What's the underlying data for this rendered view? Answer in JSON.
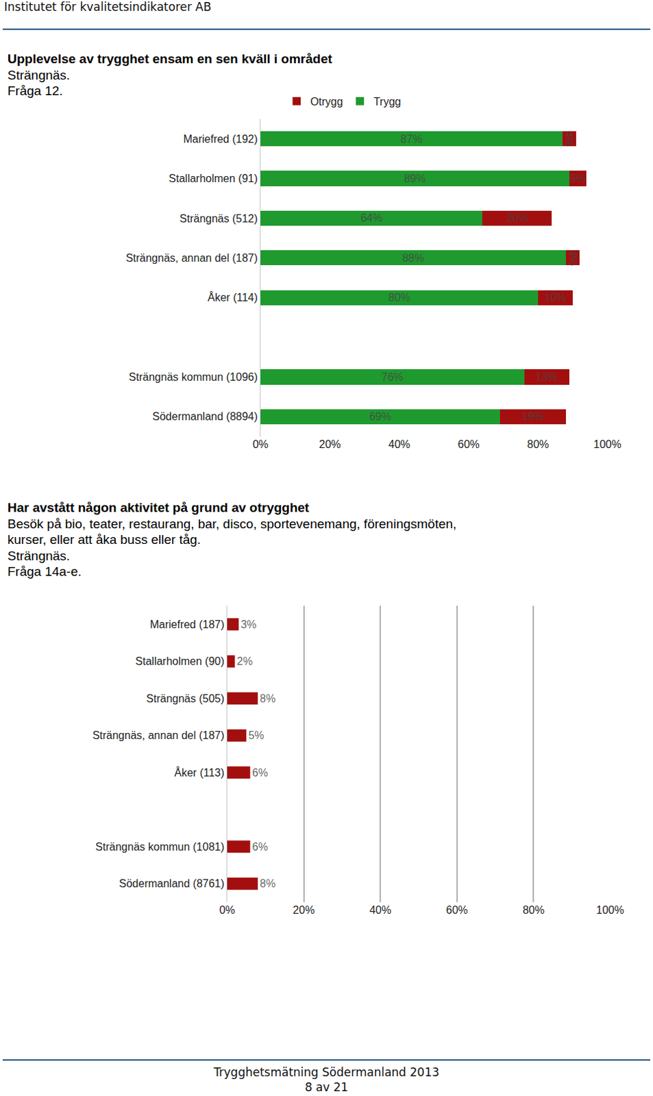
{
  "page": {
    "header": "Institutet för kvalitetsindikatorer AB",
    "footer": "Trygghetsmätning Södermanland 2013",
    "page_number": "8 av 21"
  },
  "chart_data": [
    {
      "type": "bar",
      "orientation": "horizontal",
      "stacked": true,
      "title": "Upplevelse av trygghet ensam en sen kväll i området",
      "subtitle": "Strängnäs.\nFråga 12.",
      "categories": [
        "Mariefred (192)",
        "Stallarholmen (91)",
        "Strängnäs (512)",
        "Strängnäs, annan del (187)",
        "Åker (114)",
        null,
        "Strängnäs kommun (1096)",
        "Södermanland (8894)"
      ],
      "series": [
        {
          "name": "Trygg",
          "color": "#1f9a2f",
          "values": [
            87,
            89,
            64,
            88,
            80,
            null,
            76,
            69
          ],
          "value_labels": [
            "87%",
            "89%",
            "64%",
            "88%",
            "80%",
            null,
            "76%",
            "69%"
          ]
        },
        {
          "name": "Otrygg",
          "color": "#a30f0f",
          "values": [
            4,
            5,
            20,
            4,
            10,
            null,
            13,
            19
          ],
          "value_labels": [
            "4%",
            "5%",
            "20%",
            "4%",
            "10%",
            null,
            "13%",
            "19%"
          ]
        }
      ],
      "data_labels": true,
      "legend": "top",
      "grid": false,
      "xlim": [
        0,
        100
      ],
      "xticks": [
        {
          "value": 0,
          "label": "0%"
        },
        {
          "value": 20,
          "label": "20%"
        },
        {
          "value": 40,
          "label": "40%"
        },
        {
          "value": 60,
          "label": "60%"
        },
        {
          "value": 80,
          "label": "80%"
        },
        {
          "value": 100,
          "label": "100%"
        }
      ]
    },
    {
      "type": "bar",
      "orientation": "horizontal",
      "title": "Har avstått någon aktivitet på grund av otrygghet",
      "subtitle": "Besök på bio, teater, restaurang, bar, disco, sportevenemang, föreningsmöten,\nkurser, eller att åka buss eller tåg.\nSträngnäs.\nFråga 14a-e.",
      "categories": [
        "Mariefred (187)",
        "Stallarholmen (90)",
        "Strängnäs (505)",
        "Strängnäs, annan del (187)",
        "Åker (113)",
        null,
        "Strängnäs kommun (1081)",
        "Södermanland (8761)"
      ],
      "values": [
        3,
        2,
        8,
        5,
        6,
        null,
        6,
        8
      ],
      "value_labels": [
        "3%",
        "2%",
        "8%",
        "5%",
        "6%",
        null,
        "6%",
        "8%"
      ],
      "color": "#a30f0f",
      "data_labels": true,
      "grid": true,
      "xlim": [
        0,
        100
      ],
      "xticks": [
        {
          "value": 0,
          "label": "0%"
        },
        {
          "value": 20,
          "label": "20%"
        },
        {
          "value": 40,
          "label": "40%"
        },
        {
          "value": 60,
          "label": "60%"
        },
        {
          "value": 80,
          "label": "80%"
        },
        {
          "value": 100,
          "label": "100%"
        }
      ]
    }
  ]
}
